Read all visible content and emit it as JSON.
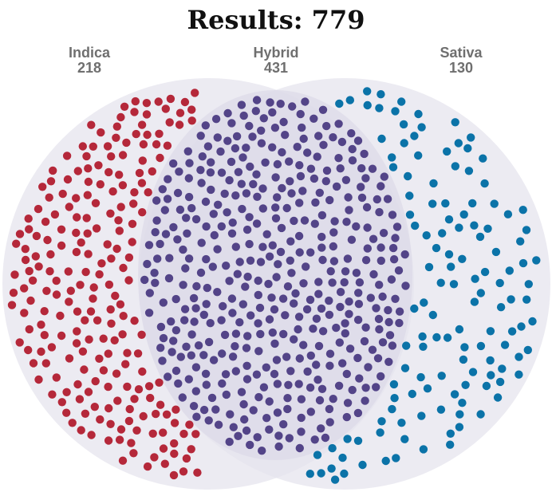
{
  "title": "Results: 779",
  "chart_data": {
    "type": "scatter",
    "subtype": "venn-dot-plot",
    "title": "Results: 779",
    "total": 779,
    "series": [
      {
        "name": "Indica",
        "value": 218,
        "color": "#b5283a"
      },
      {
        "name": "Hybrid",
        "value": 431,
        "color": "#534488"
      },
      {
        "name": "Sativa",
        "value": 130,
        "color": "#0b73a8"
      }
    ],
    "background_color": "#e6e4ee"
  }
}
